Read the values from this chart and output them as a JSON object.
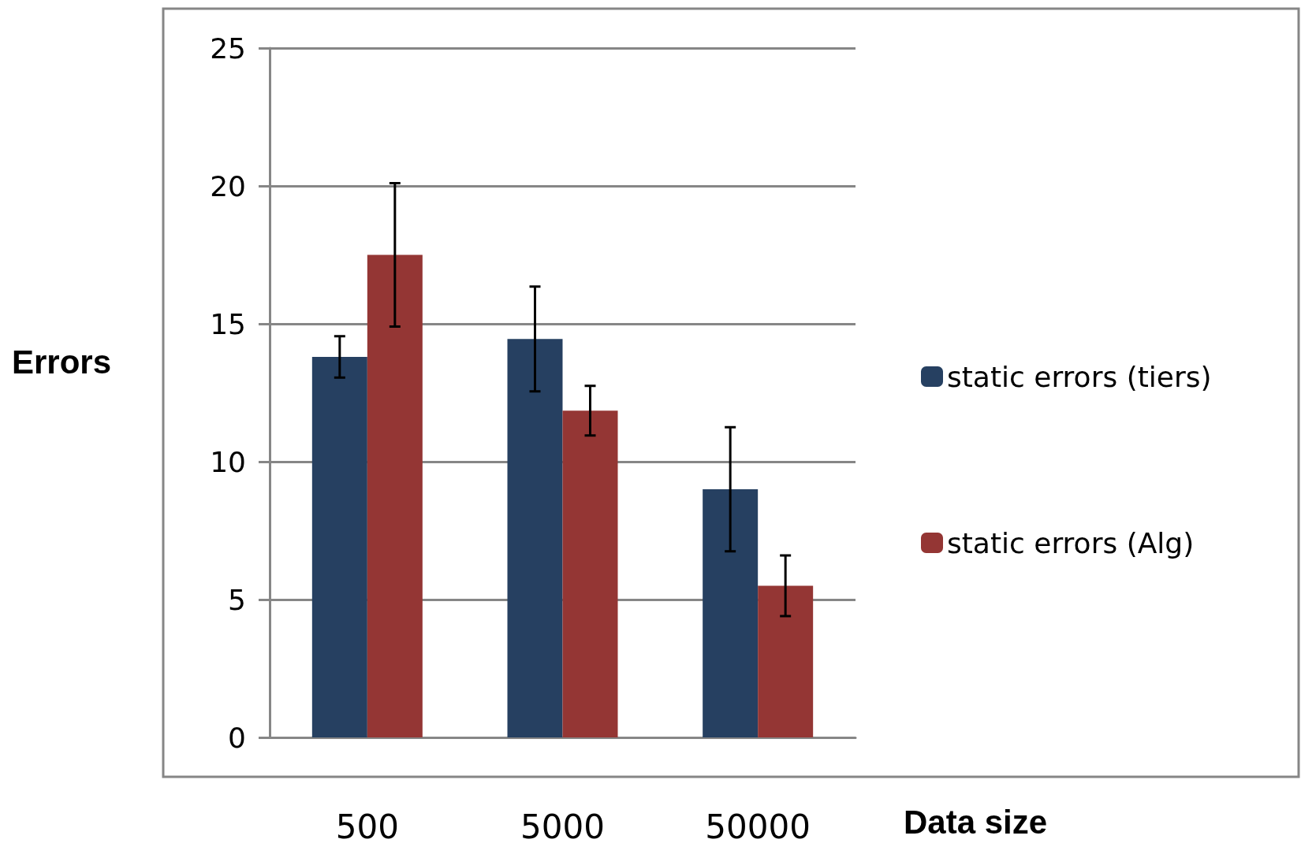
{
  "chart_data": {
    "type": "bar",
    "xlabel": "Data size",
    "ylabel": "Errors",
    "categories": [
      "500",
      "5000",
      "50000"
    ],
    "series": [
      {
        "name": "static errors (tiers)",
        "color": "#264061",
        "values": [
          13.8,
          14.45,
          9.0
        ],
        "errors": [
          0.75,
          1.9,
          2.25
        ]
      },
      {
        "name": "static errors (Alg)",
        "color": "#943634",
        "values": [
          17.5,
          11.85,
          5.5
        ],
        "errors": [
          2.6,
          0.9,
          1.1
        ]
      }
    ],
    "ylim": [
      0,
      25
    ],
    "yticks": [
      0,
      5,
      10,
      15,
      20,
      25
    ],
    "grid": "y",
    "legend": "right"
  }
}
